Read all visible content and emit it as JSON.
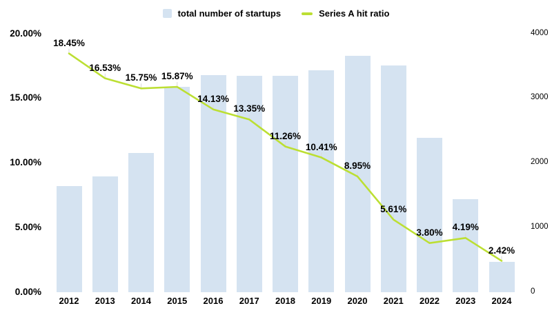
{
  "legend": {
    "bar_label": "total number of startups",
    "line_label": "Series A hit ratio"
  },
  "colors": {
    "bar_fill": "#d5e3f1",
    "line_stroke": "#bcdf33",
    "label_text": "#000000",
    "leader_line": "#d9d9d9",
    "background": "#ffffff"
  },
  "chart_data": {
    "type": "bar",
    "subtype": "combo-bar-line",
    "title": "",
    "xlabel": "",
    "ylabel": "",
    "grid": false,
    "legend_position": "top-center",
    "categories": [
      "2012",
      "2013",
      "2014",
      "2015",
      "2016",
      "2017",
      "2018",
      "2019",
      "2020",
      "2021",
      "2022",
      "2023",
      "2024"
    ],
    "series": [
      {
        "name": "total number of startups",
        "type": "bar",
        "axis": "right",
        "values": [
          1640,
          1790,
          2150,
          3170,
          3360,
          3340,
          3345,
          3435,
          3650,
          3505,
          2390,
          1435,
          465
        ]
      },
      {
        "name": "Series A hit ratio",
        "type": "line",
        "axis": "left",
        "values": [
          18.45,
          16.53,
          15.75,
          15.87,
          14.13,
          13.35,
          11.26,
          10.41,
          8.95,
          5.61,
          3.8,
          4.19,
          2.42
        ],
        "point_labels": [
          "18.45%",
          "16.53%",
          "15.75%",
          "15.87%",
          "14.13%",
          "13.35%",
          "11.26%",
          "10.41%",
          "8.95%",
          "5.61%",
          "3.80%",
          "4.19%",
          "2.42%"
        ]
      }
    ],
    "left_axis": {
      "ticks": [
        "20.00%",
        "15.00%",
        "10.00%",
        "5.00%",
        "0.00%"
      ],
      "tick_values": [
        20,
        15,
        10,
        5,
        0
      ],
      "min": 0,
      "max": 20
    },
    "right_axis": {
      "ticks": [
        "4000",
        "3000",
        "2000",
        "1000",
        "0"
      ],
      "tick_values": [
        4000,
        3000,
        2000,
        1000,
        0
      ],
      "min": 0,
      "max": 4000
    }
  }
}
